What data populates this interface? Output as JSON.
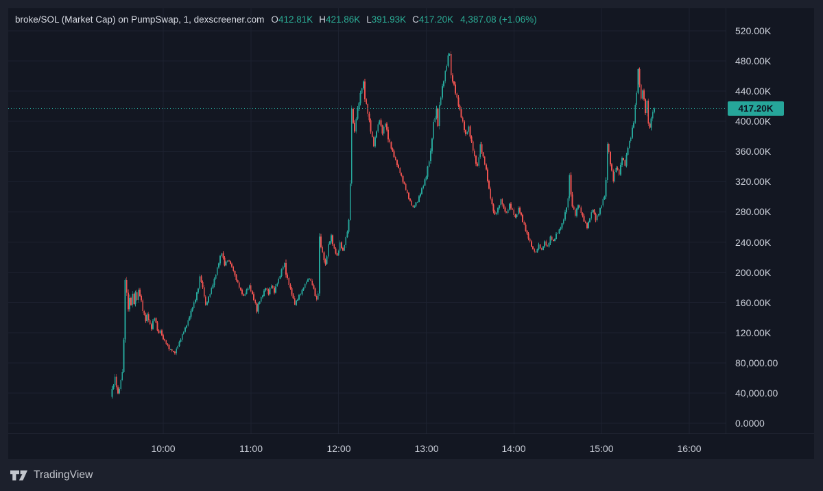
{
  "header": {
    "symbol_line": "broke/SOL (Market Cap) on PumpSwap, 1, dexscreener.com",
    "ohlc": [
      {
        "label": "O",
        "value": "412.81K"
      },
      {
        "label": "H",
        "value": "421.86K"
      },
      {
        "label": "L",
        "value": "391.93K"
      },
      {
        "label": "C",
        "value": "417.20K"
      }
    ],
    "change": "4,387.08 (+1.06%)"
  },
  "footer": {
    "brand": "TradingView"
  },
  "colors": {
    "up": "#26a69a",
    "down": "#ef5350",
    "badge_bg": "#26a69a",
    "badge_text": "#0e1320",
    "panel_bg": "#131722",
    "outer_bg": "#1c202c",
    "grid": "#1d2230",
    "axis_text": "#ccd0da",
    "legend_value": "#2bab94"
  },
  "chart_data": {
    "type": "candlestick",
    "title": "broke/SOL (Market Cap) on PumpSwap",
    "interval": "1",
    "feed": "dexscreener.com",
    "last_bar": {
      "open": 412810,
      "high": 421860,
      "low": 391930,
      "close": 417200,
      "change_abs": 4387.08,
      "change_pct": 1.06
    },
    "last_price": 417200,
    "last_price_label": "417.20K",
    "grid": true,
    "legend_position": "top-left",
    "y_axis": {
      "side": "right",
      "ylim": [
        0,
        550000
      ],
      "ticks": [
        {
          "label": "520.00K",
          "value": 520000
        },
        {
          "label": "480.00K",
          "value": 480000
        },
        {
          "label": "440.00K",
          "value": 440000
        },
        {
          "label": "400.00K",
          "value": 400000
        },
        {
          "label": "360.00K",
          "value": 360000
        },
        {
          "label": "320.00K",
          "value": 320000
        },
        {
          "label": "280.00K",
          "value": 280000
        },
        {
          "label": "240.00K",
          "value": 240000
        },
        {
          "label": "200.00K",
          "value": 200000
        },
        {
          "label": "160.00K",
          "value": 160000
        },
        {
          "label": "120.00K",
          "value": 120000
        },
        {
          "label": "80,000.00",
          "value": 80000
        },
        {
          "label": "40,000.00",
          "value": 40000
        },
        {
          "label": "0.0000",
          "value": 0
        }
      ]
    },
    "x_axis": {
      "visible_data_range": [
        "09:24",
        "15:36"
      ],
      "ticks": [
        "10:00",
        "11:00",
        "12:00",
        "13:00",
        "14:00",
        "15:00",
        "16:00"
      ]
    },
    "price_path": [
      [
        "09:24",
        35000
      ],
      [
        "09:25",
        44000
      ],
      [
        "09:26",
        52000
      ],
      [
        "09:27",
        60000
      ],
      [
        "09:28",
        50000
      ],
      [
        "09:29",
        38000
      ],
      [
        "09:30",
        46000
      ],
      [
        "09:31",
        56000
      ],
      [
        "09:32",
        70000
      ],
      [
        "09:33",
        110000
      ],
      [
        "09:34",
        192000
      ],
      [
        "09:35",
        172000
      ],
      [
        "09:36",
        152000
      ],
      [
        "09:37",
        164000
      ],
      [
        "09:38",
        158000
      ],
      [
        "09:39",
        170000
      ],
      [
        "09:40",
        160000
      ],
      [
        "09:41",
        172000
      ],
      [
        "09:42",
        165000
      ],
      [
        "09:43",
        176000
      ],
      [
        "09:44",
        170000
      ],
      [
        "09:45",
        162000
      ],
      [
        "09:46",
        150000
      ],
      [
        "09:47",
        142000
      ],
      [
        "09:48",
        136000
      ],
      [
        "09:49",
        144000
      ],
      [
        "09:50",
        138000
      ],
      [
        "09:51",
        130000
      ],
      [
        "09:52",
        126000
      ],
      [
        "09:53",
        134000
      ],
      [
        "09:54",
        140000
      ],
      [
        "09:55",
        132000
      ],
      [
        "09:56",
        124000
      ],
      [
        "09:57",
        118000
      ],
      [
        "09:58",
        124000
      ],
      [
        "09:59",
        116000
      ],
      [
        "10:00",
        112000
      ],
      [
        "10:02",
        106000
      ],
      [
        "10:04",
        99000
      ],
      [
        "10:06",
        96000
      ],
      [
        "10:08",
        93000
      ],
      [
        "10:10",
        103000
      ],
      [
        "10:12",
        112000
      ],
      [
        "10:14",
        122000
      ],
      [
        "10:16",
        130000
      ],
      [
        "10:18",
        142000
      ],
      [
        "10:20",
        154000
      ],
      [
        "10:22",
        164000
      ],
      [
        "10:24",
        180000
      ],
      [
        "10:25",
        193000
      ],
      [
        "10:26",
        188000
      ],
      [
        "10:28",
        170000
      ],
      [
        "10:29",
        156000
      ],
      [
        "10:31",
        166000
      ],
      [
        "10:33",
        178000
      ],
      [
        "10:35",
        190000
      ],
      [
        "10:37",
        205000
      ],
      [
        "10:39",
        220000
      ],
      [
        "10:40",
        226000
      ],
      [
        "10:42",
        210000
      ],
      [
        "10:44",
        216000
      ],
      [
        "10:46",
        212000
      ],
      [
        "10:48",
        202000
      ],
      [
        "10:49",
        196000
      ],
      [
        "10:51",
        186000
      ],
      [
        "10:53",
        176000
      ],
      [
        "10:55",
        168000
      ],
      [
        "10:57",
        176000
      ],
      [
        "10:59",
        182000
      ],
      [
        "11:01",
        170000
      ],
      [
        "11:03",
        158000
      ],
      [
        "11:04",
        150000
      ],
      [
        "11:06",
        162000
      ],
      [
        "11:08",
        170000
      ],
      [
        "11:10",
        180000
      ],
      [
        "11:12",
        172000
      ],
      [
        "11:14",
        183000
      ],
      [
        "11:16",
        174000
      ],
      [
        "11:18",
        186000
      ],
      [
        "11:20",
        196000
      ],
      [
        "11:22",
        208000
      ],
      [
        "11:23",
        212000
      ],
      [
        "11:24",
        198000
      ],
      [
        "11:26",
        185000
      ],
      [
        "11:28",
        172000
      ],
      [
        "11:30",
        158000
      ],
      [
        "11:32",
        165000
      ],
      [
        "11:34",
        172000
      ],
      [
        "11:36",
        180000
      ],
      [
        "11:38",
        188000
      ],
      [
        "11:40",
        192000
      ],
      [
        "11:42",
        184000
      ],
      [
        "11:44",
        170000
      ],
      [
        "11:45",
        163000
      ],
      [
        "11:46",
        174000
      ],
      [
        "11:47",
        246000
      ],
      [
        "11:49",
        225000
      ],
      [
        "11:51",
        210000
      ],
      [
        "11:53",
        235000
      ],
      [
        "11:55",
        248000
      ],
      [
        "11:57",
        230000
      ],
      [
        "11:59",
        222000
      ],
      [
        "12:01",
        238000
      ],
      [
        "12:03",
        228000
      ],
      [
        "12:05",
        245000
      ],
      [
        "12:06",
        255000
      ],
      [
        "12:07",
        268000
      ],
      [
        "12:08",
        320000
      ],
      [
        "12:09",
        415000
      ],
      [
        "12:10",
        400000
      ],
      [
        "12:11",
        385000
      ],
      [
        "12:12",
        405000
      ],
      [
        "12:14",
        425000
      ],
      [
        "12:16",
        445000
      ],
      [
        "12:17",
        452000
      ],
      [
        "12:18",
        430000
      ],
      [
        "12:20",
        412000
      ],
      [
        "12:22",
        388000
      ],
      [
        "12:24",
        368000
      ],
      [
        "12:26",
        388000
      ],
      [
        "12:28",
        402000
      ],
      [
        "12:30",
        385000
      ],
      [
        "12:32",
        398000
      ],
      [
        "12:34",
        378000
      ],
      [
        "12:36",
        365000
      ],
      [
        "12:39",
        348000
      ],
      [
        "12:42",
        332000
      ],
      [
        "12:45",
        316000
      ],
      [
        "12:48",
        298000
      ],
      [
        "12:51",
        286000
      ],
      [
        "12:54",
        294000
      ],
      [
        "12:57",
        310000
      ],
      [
        "13:00",
        328000
      ],
      [
        "13:03",
        360000
      ],
      [
        "13:05",
        398000
      ],
      [
        "13:07",
        415000
      ],
      [
        "13:08",
        395000
      ],
      [
        "13:09",
        420000
      ],
      [
        "13:11",
        445000
      ],
      [
        "13:13",
        465000
      ],
      [
        "13:15",
        486000
      ],
      [
        "13:16",
        490000
      ],
      [
        "13:17",
        460000
      ],
      [
        "13:19",
        448000
      ],
      [
        "13:21",
        430000
      ],
      [
        "13:23",
        415000
      ],
      [
        "13:25",
        398000
      ],
      [
        "13:27",
        382000
      ],
      [
        "13:29",
        392000
      ],
      [
        "13:31",
        372000
      ],
      [
        "13:33",
        352000
      ],
      [
        "13:35",
        340000
      ],
      [
        "13:37",
        368000
      ],
      [
        "13:39",
        352000
      ],
      [
        "13:41",
        335000
      ],
      [
        "13:43",
        310000
      ],
      [
        "13:45",
        288000
      ],
      [
        "13:47",
        276000
      ],
      [
        "13:49",
        284000
      ],
      [
        "13:51",
        296000
      ],
      [
        "13:53",
        285000
      ],
      [
        "13:55",
        278000
      ],
      [
        "13:57",
        290000
      ],
      [
        "13:59",
        282000
      ],
      [
        "14:01",
        272000
      ],
      [
        "14:03",
        284000
      ],
      [
        "14:05",
        275000
      ],
      [
        "14:07",
        262000
      ],
      [
        "14:09",
        250000
      ],
      [
        "14:11",
        240000
      ],
      [
        "14:13",
        230000
      ],
      [
        "14:15",
        226000
      ],
      [
        "14:17",
        236000
      ],
      [
        "14:19",
        229000
      ],
      [
        "14:21",
        240000
      ],
      [
        "14:23",
        234000
      ],
      [
        "14:25",
        246000
      ],
      [
        "14:27",
        241000
      ],
      [
        "14:29",
        250000
      ],
      [
        "14:31",
        256000
      ],
      [
        "14:33",
        264000
      ],
      [
        "14:35",
        278000
      ],
      [
        "14:37",
        296000
      ],
      [
        "14:38",
        330000
      ],
      [
        "14:39",
        302000
      ],
      [
        "14:40",
        288000
      ],
      [
        "14:42",
        276000
      ],
      [
        "14:44",
        290000
      ],
      [
        "14:46",
        280000
      ],
      [
        "14:48",
        268000
      ],
      [
        "14:50",
        260000
      ],
      [
        "14:52",
        272000
      ],
      [
        "14:54",
        284000
      ],
      [
        "14:56",
        270000
      ],
      [
        "14:58",
        278000
      ],
      [
        "15:00",
        290000
      ],
      [
        "15:02",
        302000
      ],
      [
        "15:03",
        320000
      ],
      [
        "15:04",
        372000
      ],
      [
        "15:06",
        345000
      ],
      [
        "15:08",
        322000
      ],
      [
        "15:10",
        340000
      ],
      [
        "15:12",
        330000
      ],
      [
        "15:14",
        352000
      ],
      [
        "15:16",
        342000
      ],
      [
        "15:18",
        366000
      ],
      [
        "15:20",
        380000
      ],
      [
        "15:22",
        400000
      ],
      [
        "15:24",
        440000
      ],
      [
        "15:25",
        468000
      ],
      [
        "15:26",
        450000
      ],
      [
        "15:27",
        428000
      ],
      [
        "15:28",
        442000
      ],
      [
        "15:30",
        412000
      ],
      [
        "15:31",
        426000
      ],
      [
        "15:32",
        398000
      ],
      [
        "15:33",
        390000
      ],
      [
        "15:34",
        406000
      ],
      [
        "15:36",
        417200
      ]
    ]
  }
}
